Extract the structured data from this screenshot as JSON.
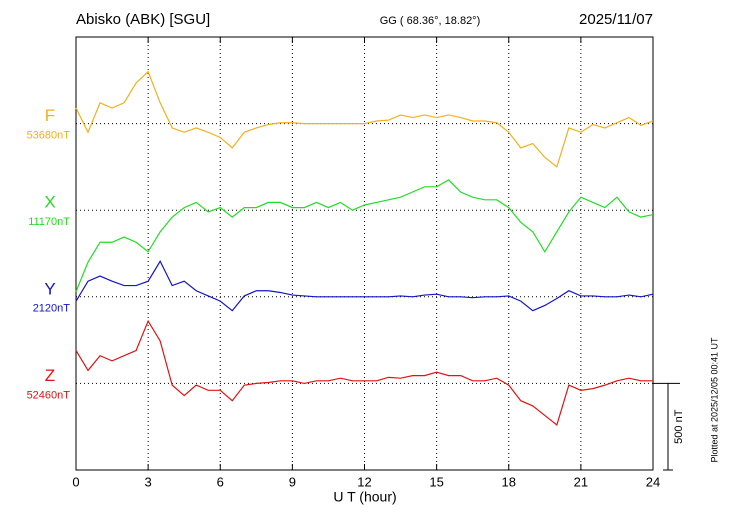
{
  "chart_data": {
    "type": "line",
    "title": "Abisko (ABK)  [SGU]",
    "subtitle": "GG ( 68.36°,  18.82°)",
    "date": "2025/11/07",
    "x_label": "U T (hour)",
    "note": "Plotted at 2025/12/05 00:41 UT",
    "xlim": [
      0,
      24
    ],
    "xticks": [
      0,
      3,
      6,
      9,
      12,
      15,
      18,
      21,
      24
    ],
    "grid": true,
    "scale_bar": {
      "value": 500,
      "label": "500 nT"
    },
    "x": [
      0,
      0.5,
      1,
      1.5,
      2,
      2.5,
      3,
      3.5,
      4,
      4.5,
      5,
      5.5,
      6,
      6.5,
      7,
      7.5,
      8,
      8.5,
      9,
      9.5,
      10,
      10.5,
      11,
      11.5,
      12,
      12.5,
      13,
      13.5,
      14,
      14.5,
      15,
      15.5,
      16,
      16.5,
      17,
      17.5,
      18,
      18.5,
      19,
      19.5,
      20,
      20.5,
      21,
      21.5,
      22,
      22.5,
      23,
      23.5,
      24
    ],
    "series": [
      {
        "name": "F",
        "color": "#f2b01e",
        "baseline": {
          "value": 53680,
          "label": "53680nT"
        },
        "values": [
          53770,
          53630,
          53800,
          53770,
          53800,
          53915,
          53980,
          53800,
          53655,
          53630,
          53655,
          53630,
          53600,
          53540,
          53630,
          53655,
          53675,
          53685,
          53685,
          53680,
          53680,
          53680,
          53680,
          53680,
          53680,
          53695,
          53700,
          53730,
          53715,
          53730,
          53715,
          53730,
          53715,
          53695,
          53695,
          53685,
          53630,
          53540,
          53565,
          53485,
          53430,
          53655,
          53630,
          53675,
          53655,
          53685,
          53715,
          53670,
          53695
        ]
      },
      {
        "name": "X",
        "color": "#22dd22",
        "baseline": {
          "value": 11170,
          "label": "11170nT"
        },
        "values": [
          10700,
          10870,
          10985,
          10985,
          11015,
          10985,
          10930,
          11045,
          11130,
          11185,
          11215,
          11160,
          11185,
          11130,
          11185,
          11185,
          11215,
          11215,
          11185,
          11185,
          11215,
          11185,
          11215,
          11170,
          11200,
          11215,
          11230,
          11245,
          11275,
          11305,
          11305,
          11345,
          11275,
          11245,
          11230,
          11230,
          11185,
          11100,
          11045,
          10930,
          11045,
          11160,
          11245,
          11215,
          11185,
          11245,
          11160,
          11130,
          11145
        ]
      },
      {
        "name": "Y",
        "color": "#1414cc",
        "baseline": {
          "value": 2120,
          "label": "2120nT"
        },
        "values": [
          2095,
          2210,
          2240,
          2210,
          2185,
          2185,
          2210,
          2325,
          2185,
          2210,
          2155,
          2125,
          2095,
          2040,
          2125,
          2155,
          2155,
          2145,
          2130,
          2125,
          2120,
          2120,
          2120,
          2120,
          2120,
          2120,
          2120,
          2125,
          2120,
          2130,
          2135,
          2120,
          2120,
          2115,
          2120,
          2120,
          2125,
          2095,
          2040,
          2070,
          2110,
          2155,
          2125,
          2125,
          2120,
          2120,
          2130,
          2120,
          2135
        ]
      },
      {
        "name": "Z",
        "color": "#e01414",
        "baseline": {
          "value": 52460,
          "label": "52460nT"
        },
        "values": [
          52650,
          52535,
          52620,
          52590,
          52620,
          52650,
          52820,
          52705,
          52450,
          52390,
          52450,
          52420,
          52420,
          52360,
          52450,
          52460,
          52465,
          52475,
          52475,
          52460,
          52475,
          52475,
          52490,
          52475,
          52475,
          52475,
          52495,
          52490,
          52505,
          52505,
          52525,
          52505,
          52505,
          52475,
          52475,
          52490,
          52450,
          52360,
          52330,
          52275,
          52220,
          52450,
          52420,
          52430,
          52450,
          52475,
          52490,
          52475,
          52475
        ]
      }
    ]
  }
}
